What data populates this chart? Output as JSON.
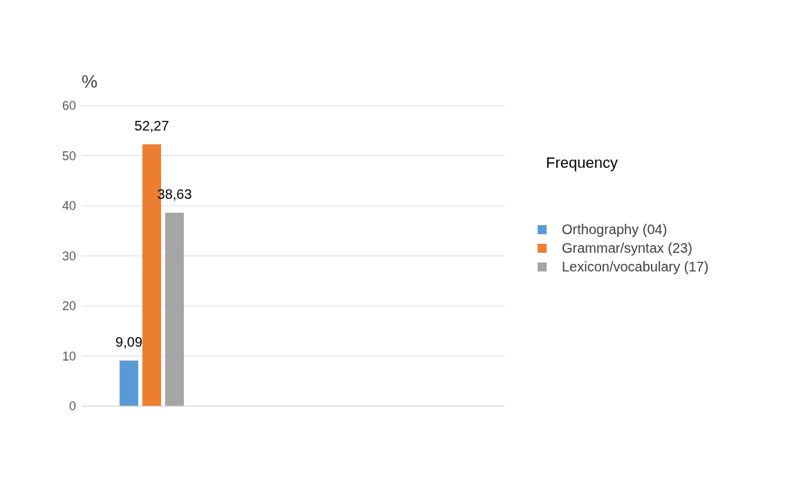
{
  "chart_data": {
    "type": "bar",
    "ylabel": "%",
    "legend_title": "Frequency",
    "categories": [
      null,
      null,
      null
    ],
    "series": [
      {
        "name": "Orthography (04)",
        "color": "#5b9bd5",
        "values": [
          9.09,
          null,
          null
        ],
        "value_labels": [
          "9,09",
          null,
          null
        ]
      },
      {
        "name": "Grammar/syntax (23)",
        "color": "#ed7d31",
        "values": [
          52.27,
          null,
          null
        ],
        "value_labels": [
          "52,27",
          null,
          null
        ]
      },
      {
        "name": "Lexicon/vocabulary (17)",
        "color": "#a5a5a5",
        "values": [
          38.63,
          null,
          null
        ],
        "value_labels": [
          "38,63",
          null,
          null
        ]
      }
    ],
    "ylim": [
      0,
      60
    ],
    "yticks": [
      0,
      10,
      20,
      30,
      40,
      50,
      60
    ],
    "grid": "y",
    "legend": "right"
  }
}
